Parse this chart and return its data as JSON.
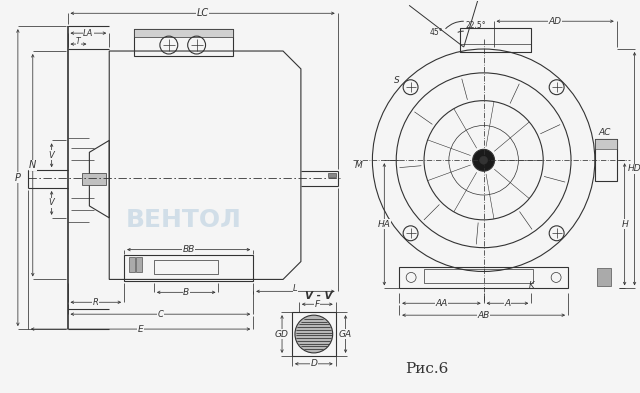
{
  "bg_color": "#f5f5f5",
  "line_color": "#333333",
  "dim_color": "#333333",
  "watermark_text": "ВЕНТОЛ",
  "fig_caption": "Рис.6",
  "vv_label": "V - V"
}
